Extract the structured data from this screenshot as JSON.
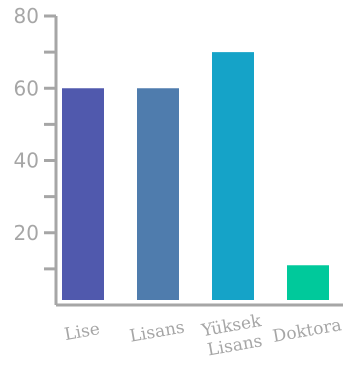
{
  "chart_data": {
    "type": "bar",
    "title": "",
    "xlabel": "",
    "ylabel": "",
    "categories": [
      "Lise",
      "Lisans",
      "Yüksek Lisans",
      "Doktora"
    ],
    "category_lines": [
      [
        "Lise"
      ],
      [
        "Lisans"
      ],
      [
        "Yüksek",
        "Lisans"
      ],
      [
        "Doktora"
      ]
    ],
    "values": [
      60,
      60,
      70,
      11
    ],
    "colors": [
      "#5059ad",
      "#4f7cad",
      "#15a3c8",
      "#00c99b"
    ],
    "ylim": [
      0,
      80
    ],
    "y_tick_labels": [
      20,
      40,
      60,
      80
    ],
    "y_minor_ticks": [
      10,
      30,
      50,
      70
    ],
    "grid": false,
    "legend": "none"
  }
}
